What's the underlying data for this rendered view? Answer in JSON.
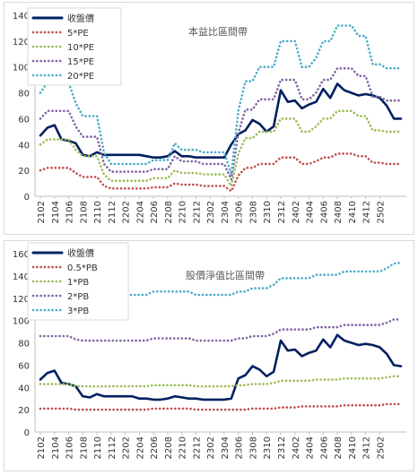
{
  "chart_data": [
    {
      "type": "line",
      "title": "本益比區間帶",
      "ylim": [
        0,
        140
      ],
      "yticks": [
        0,
        20,
        40,
        60,
        80,
        100,
        120,
        140
      ],
      "grid": "none",
      "legend_position": "top-left",
      "x_tick_labels": [
        "2102",
        "2104",
        "2106",
        "2108",
        "2110",
        "2112",
        "2202",
        "2204",
        "2206",
        "2208",
        "2210",
        "2212",
        "2302",
        "2304",
        "2306",
        "2308",
        "2310",
        "2312",
        "2402",
        "2404",
        "2406",
        "2408",
        "2410",
        "2412",
        "2502"
      ],
      "series": [
        {
          "name": "收盤價",
          "color": "#002060",
          "style": "solid",
          "values": [
            47,
            53,
            55,
            44,
            43,
            41,
            32,
            31,
            34,
            32,
            32,
            32,
            32,
            32,
            32,
            31,
            30,
            30,
            31,
            35,
            31,
            31,
            30,
            30,
            30,
            30,
            30,
            40,
            48,
            51,
            59,
            56,
            50,
            54,
            82,
            73,
            74,
            68,
            71,
            73,
            83,
            76,
            87,
            82,
            80,
            78,
            79,
            78,
            76,
            70,
            60,
            60
          ]
        },
        {
          "name": "5*PE",
          "color": "#C0504D",
          "style": "dotted",
          "values": [
            20,
            22,
            22,
            22,
            22,
            18,
            15,
            15,
            15,
            8,
            6,
            6,
            6,
            6,
            6,
            6,
            7,
            7,
            7,
            10,
            9,
            9,
            9,
            8,
            8,
            8,
            8,
            4,
            16,
            22,
            22,
            25,
            25,
            25,
            30,
            30,
            30,
            25,
            25,
            27,
            30,
            30,
            33,
            33,
            33,
            31,
            31,
            26,
            26,
            25,
            25,
            25
          ]
        },
        {
          "name": "10*PE",
          "color": "#9BBB59",
          "style": "dotted",
          "values": [
            40,
            44,
            44,
            44,
            44,
            36,
            31,
            31,
            31,
            17,
            12,
            12,
            12,
            12,
            12,
            12,
            14,
            14,
            14,
            20,
            18,
            18,
            18,
            17,
            17,
            17,
            17,
            8,
            33,
            45,
            45,
            50,
            50,
            50,
            60,
            60,
            60,
            50,
            50,
            54,
            60,
            60,
            66,
            66,
            66,
            62,
            62,
            51,
            51,
            50,
            50,
            50
          ]
        },
        {
          "name": "15*PE",
          "color": "#8064A2",
          "style": "dotted",
          "values": [
            60,
            66,
            66,
            66,
            66,
            54,
            46,
            46,
            46,
            25,
            19,
            19,
            19,
            19,
            19,
            19,
            21,
            21,
            21,
            31,
            27,
            27,
            27,
            25,
            25,
            25,
            25,
            13,
            49,
            67,
            67,
            75,
            75,
            75,
            90,
            90,
            90,
            75,
            75,
            80,
            90,
            90,
            99,
            99,
            99,
            93,
            93,
            77,
            77,
            74,
            74,
            74
          ]
        },
        {
          "name": "20*PE",
          "color": "#4BACC6",
          "style": "dotted",
          "values": [
            80,
            88,
            88,
            88,
            88,
            72,
            62,
            62,
            62,
            34,
            25,
            25,
            25,
            25,
            25,
            25,
            28,
            28,
            28,
            41,
            36,
            36,
            36,
            34,
            34,
            34,
            34,
            17,
            66,
            89,
            89,
            100,
            100,
            100,
            120,
            120,
            120,
            100,
            100,
            107,
            120,
            120,
            132,
            132,
            132,
            124,
            124,
            102,
            102,
            99,
            99,
            99
          ]
        }
      ]
    },
    {
      "type": "line",
      "title": "股價淨值比區間帶",
      "ylim": [
        0,
        160
      ],
      "yticks": [
        0,
        20,
        40,
        60,
        80,
        100,
        120,
        140,
        160
      ],
      "grid": "none",
      "legend_position": "top-left",
      "x_tick_labels": [
        "2102",
        "2104",
        "2106",
        "2108",
        "2110",
        "2112",
        "2202",
        "2204",
        "2206",
        "2208",
        "2210",
        "2212",
        "2302",
        "2304",
        "2306",
        "2308",
        "2310",
        "2312",
        "2402",
        "2404",
        "2406",
        "2408",
        "2410",
        "2412",
        "2502"
      ],
      "series": [
        {
          "name": "收盤價",
          "color": "#002060",
          "style": "solid",
          "values": [
            47,
            53,
            55,
            44,
            43,
            41,
            32,
            31,
            34,
            32,
            32,
            32,
            32,
            32,
            30,
            30,
            29,
            29,
            30,
            32,
            31,
            30,
            30,
            29,
            29,
            29,
            29,
            30,
            48,
            51,
            59,
            56,
            50,
            54,
            82,
            73,
            74,
            68,
            71,
            73,
            83,
            76,
            87,
            82,
            80,
            78,
            79,
            78,
            76,
            70,
            60,
            59
          ]
        },
        {
          "name": "0.5*PB",
          "color": "#C0504D",
          "style": "dotted",
          "values": [
            21,
            21,
            21,
            21,
            21,
            20,
            20,
            20,
            20,
            20,
            20,
            20,
            20,
            20,
            20,
            20,
            21,
            21,
            21,
            21,
            21,
            21,
            20,
            20,
            20,
            20,
            20,
            20,
            20,
            20,
            21,
            21,
            21,
            21,
            22,
            22,
            22,
            23,
            23,
            23,
            23,
            23,
            23,
            24,
            24,
            24,
            24,
            24,
            24,
            25,
            25,
            25
          ]
        },
        {
          "name": "1*PB",
          "color": "#9BBB59",
          "style": "dotted",
          "values": [
            43,
            43,
            43,
            43,
            43,
            41,
            41,
            41,
            41,
            41,
            41,
            41,
            41,
            41,
            41,
            41,
            42,
            42,
            42,
            42,
            42,
            42,
            41,
            41,
            41,
            41,
            41,
            41,
            42,
            42,
            43,
            43,
            43,
            44,
            46,
            46,
            46,
            46,
            46,
            47,
            47,
            47,
            47,
            48,
            48,
            48,
            48,
            48,
            48,
            49,
            50,
            50
          ]
        },
        {
          "name": "2*PB",
          "color": "#8064A2",
          "style": "dotted",
          "values": [
            86,
            86,
            86,
            86,
            86,
            83,
            82,
            82,
            82,
            82,
            82,
            82,
            82,
            82,
            82,
            82,
            84,
            84,
            84,
            84,
            84,
            84,
            82,
            82,
            82,
            82,
            82,
            82,
            84,
            84,
            86,
            86,
            86,
            88,
            92,
            92,
            92,
            92,
            92,
            94,
            94,
            94,
            94,
            96,
            96,
            96,
            96,
            96,
            96,
            98,
            101,
            101
          ]
        },
        {
          "name": "3*PB",
          "color": "#4BACC6",
          "style": "dotted",
          "values": [
            129,
            129,
            129,
            129,
            129,
            124,
            123,
            123,
            123,
            123,
            123,
            123,
            123,
            123,
            123,
            123,
            126,
            126,
            126,
            126,
            126,
            126,
            123,
            123,
            123,
            123,
            123,
            123,
            126,
            126,
            129,
            129,
            129,
            132,
            138,
            138,
            138,
            138,
            138,
            141,
            141,
            141,
            141,
            144,
            144,
            144,
            144,
            144,
            144,
            147,
            151,
            152
          ]
        }
      ]
    }
  ]
}
